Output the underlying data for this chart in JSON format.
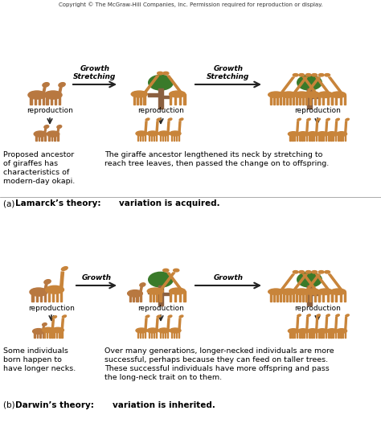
{
  "copyright_text": "Copyright © The McGraw-Hill Companies, Inc. Permission required for reproduction or display.",
  "background_color": "#f5f0eb",
  "lamarck_left_caption": "Proposed ancestor\nof giraffes has\ncharacteristics of\nmodern-day okapi.",
  "lamarck_right_caption": "The giraffe ancestor lengthened its neck by stretching to\nreach tree leaves, then passed the change on to offspring.",
  "darwin_left_caption": "Some individuals\nborn happen to\nhave longer necks.",
  "darwin_right_caption": "Over many generations, longer-necked individuals are more\nsuccessful, perhaps because they can feed on taller trees.\nThese successful individuals have more offspring and pass\nthe long-neck trait on to them.",
  "arrow_label_lamarck": "Growth\nStretching",
  "arrow_label_darwin": "Growth",
  "reproduction_label": "reproduction",
  "fig_width": 4.74,
  "fig_height": 5.31,
  "dpi": 100,
  "giraffe_body": "#c8843a",
  "giraffe_dark": "#a06020",
  "okapi_body": "#b87840",
  "tree_trunk": "#8B6040",
  "tree_leaf": "#3a7a2a",
  "text_color": "#111111",
  "arrow_color": "#222222",
  "section_label_color": "#111111"
}
